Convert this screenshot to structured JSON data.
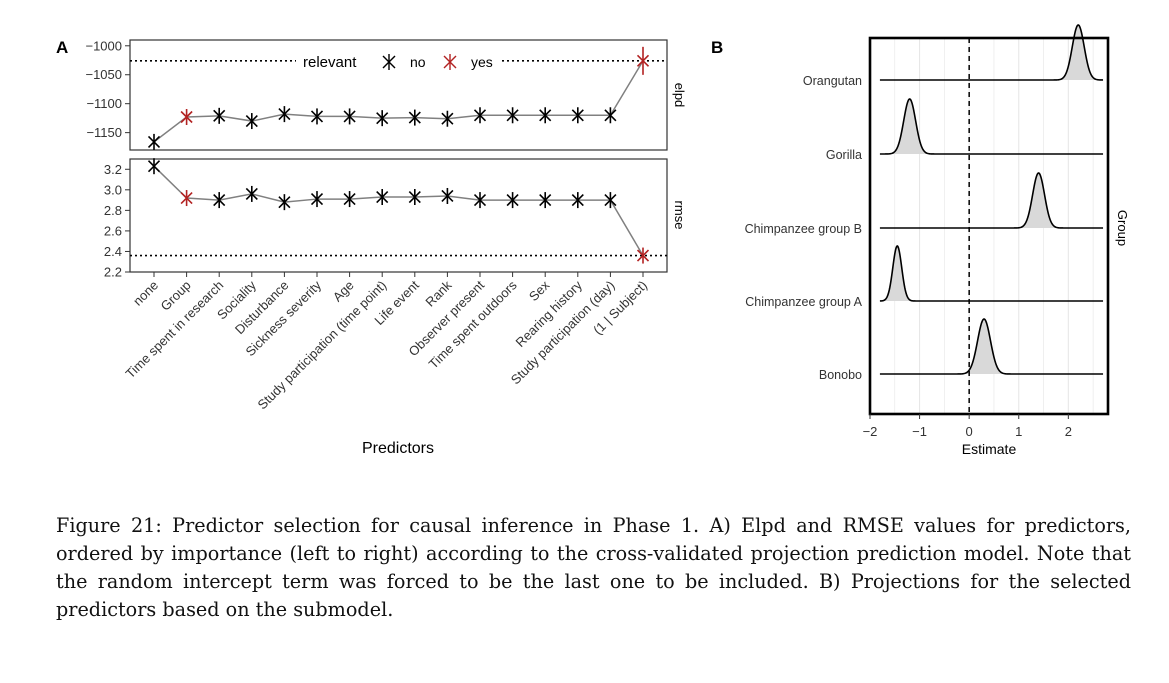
{
  "panel_labels": [
    "A",
    "B"
  ],
  "chart_data": [
    {
      "type": "line",
      "panel": "A",
      "xlabel": "Predictors",
      "categories": [
        "none",
        "Group",
        "Time spent in research",
        "Sociality",
        "Disturbance",
        "Sickness severity",
        "Age",
        "Study participation (time point)",
        "Life event",
        "Rank",
        "Observer present",
        "Time spent outdoors",
        "Sex",
        "Rearing history",
        "Study participation (day)",
        "(1 | Subject)"
      ],
      "relevant": [
        "no",
        "yes",
        "no",
        "no",
        "no",
        "no",
        "no",
        "no",
        "no",
        "no",
        "no",
        "no",
        "no",
        "no",
        "no",
        "yes"
      ],
      "legend": {
        "title": "relevant",
        "entries": [
          {
            "label": "no",
            "color": "#000000"
          },
          {
            "label": "yes",
            "color": "#b22222"
          }
        ],
        "placement": "top-center"
      },
      "facets": [
        {
          "strip_label": "elpd",
          "ylim": [
            -1180,
            -990
          ],
          "yticks": [
            -1000,
            -1050,
            -1100,
            -1150
          ],
          "values": [
            -1166,
            -1123,
            -1121,
            -1130,
            -1118,
            -1122,
            -1122,
            -1125,
            -1124,
            -1126,
            -1120,
            -1120,
            -1120,
            -1120,
            -1120,
            -1026
          ],
          "reference_line": -1026
        },
        {
          "strip_label": "rmse",
          "ylim": [
            2.2,
            3.3
          ],
          "yticks": [
            2.2,
            2.4,
            2.6,
            2.8,
            3.0,
            3.2
          ],
          "ytick_labels": [
            "2.2",
            "2.4",
            "2.6",
            "2.8",
            "3.0",
            "3.2"
          ],
          "values": [
            3.23,
            2.92,
            2.9,
            2.96,
            2.88,
            2.91,
            2.91,
            2.93,
            2.93,
            2.94,
            2.9,
            2.9,
            2.9,
            2.9,
            2.9,
            2.36
          ],
          "reference_line": 2.36
        }
      ],
      "colors": {
        "no": "#000000",
        "yes": "#b22222",
        "line": "#808080"
      }
    },
    {
      "type": "area",
      "panel": "B",
      "subtype": "ridgeline",
      "xlabel": "Estimate",
      "ylabel": "Group",
      "xlim": [
        -2,
        2.8
      ],
      "xticks": [
        -2,
        -1,
        0,
        1,
        2
      ],
      "xtick_labels": [
        "−2",
        "−1",
        "0",
        "1",
        "2"
      ],
      "reference_line": 0,
      "grid": "vertical",
      "series": [
        {
          "name": "Orangutan",
          "mean": 2.2,
          "sd": 0.12
        },
        {
          "name": "Gorilla",
          "mean": -1.2,
          "sd": 0.12
        },
        {
          "name": "Chimpanzee group B",
          "mean": 1.4,
          "sd": 0.12
        },
        {
          "name": "Chimpanzee group A",
          "mean": -1.45,
          "sd": 0.09
        },
        {
          "name": "Bonobo",
          "mean": 0.3,
          "sd": 0.13
        }
      ],
      "fill_color": "#d9d9d9"
    }
  ],
  "caption": "Figure 21: Predictor selection for causal inference in Phase 1. A) Elpd and RMSE values for predictors, ordered by importance (left to right) according to the cross-validated projection prediction model. Note that the random intercept term was forced to be the last one to be included. B) Projections for the selected predictors based on the submodel."
}
